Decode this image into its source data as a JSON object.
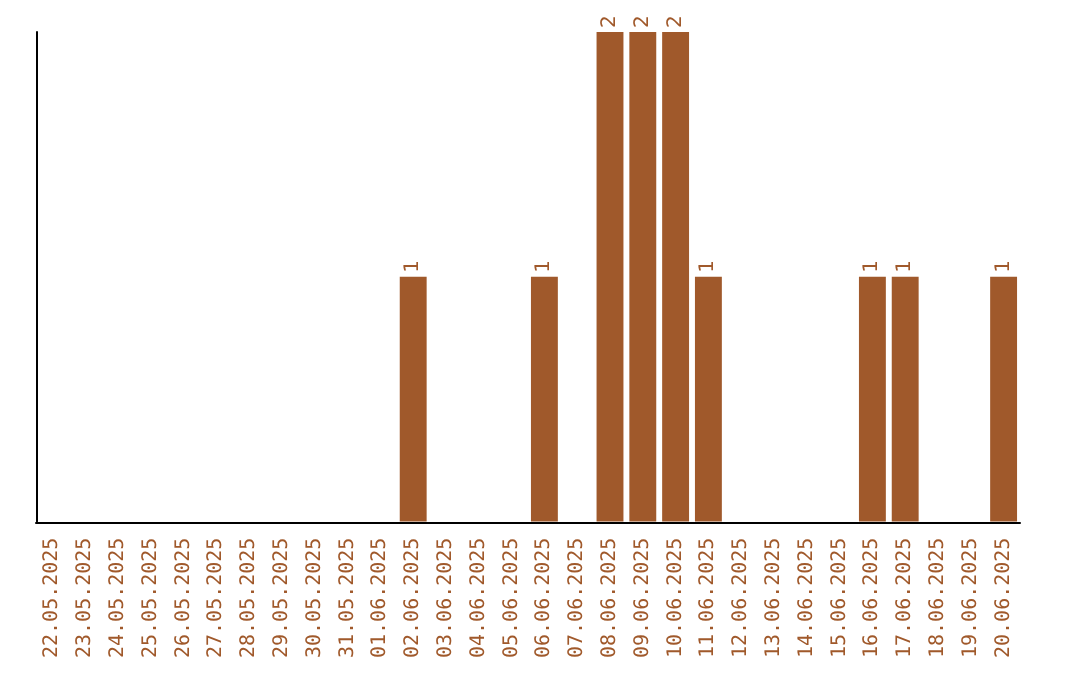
{
  "chart_data": {
    "type": "bar",
    "categories": [
      "22.05.2025",
      "23.05.2025",
      "24.05.2025",
      "25.05.2025",
      "26.05.2025",
      "27.05.2025",
      "28.05.2025",
      "29.05.2025",
      "30.05.2025",
      "31.05.2025",
      "01.06.2025",
      "02.06.2025",
      "03.06.2025",
      "04.06.2025",
      "05.06.2025",
      "06.06.2025",
      "07.06.2025",
      "08.06.2025",
      "09.06.2025",
      "10.06.2025",
      "11.06.2025",
      "12.06.2025",
      "13.06.2025",
      "14.06.2025",
      "15.06.2025",
      "16.06.2025",
      "17.06.2025",
      "18.06.2025",
      "19.06.2025",
      "20.06.2025"
    ],
    "values": [
      0,
      0,
      0,
      0,
      0,
      0,
      0,
      0,
      0,
      0,
      0,
      1,
      0,
      0,
      0,
      1,
      0,
      2,
      2,
      2,
      1,
      0,
      0,
      0,
      0,
      1,
      1,
      0,
      0,
      1
    ],
    "value_labels": [
      null,
      null,
      null,
      null,
      null,
      null,
      null,
      null,
      null,
      null,
      null,
      "1",
      null,
      null,
      null,
      "1",
      null,
      "2",
      "2",
      "2",
      "1",
      null,
      null,
      null,
      null,
      "1",
      "1",
      null,
      null,
      "1"
    ],
    "color": "#a0592b",
    "tick_labels": "x"
  }
}
